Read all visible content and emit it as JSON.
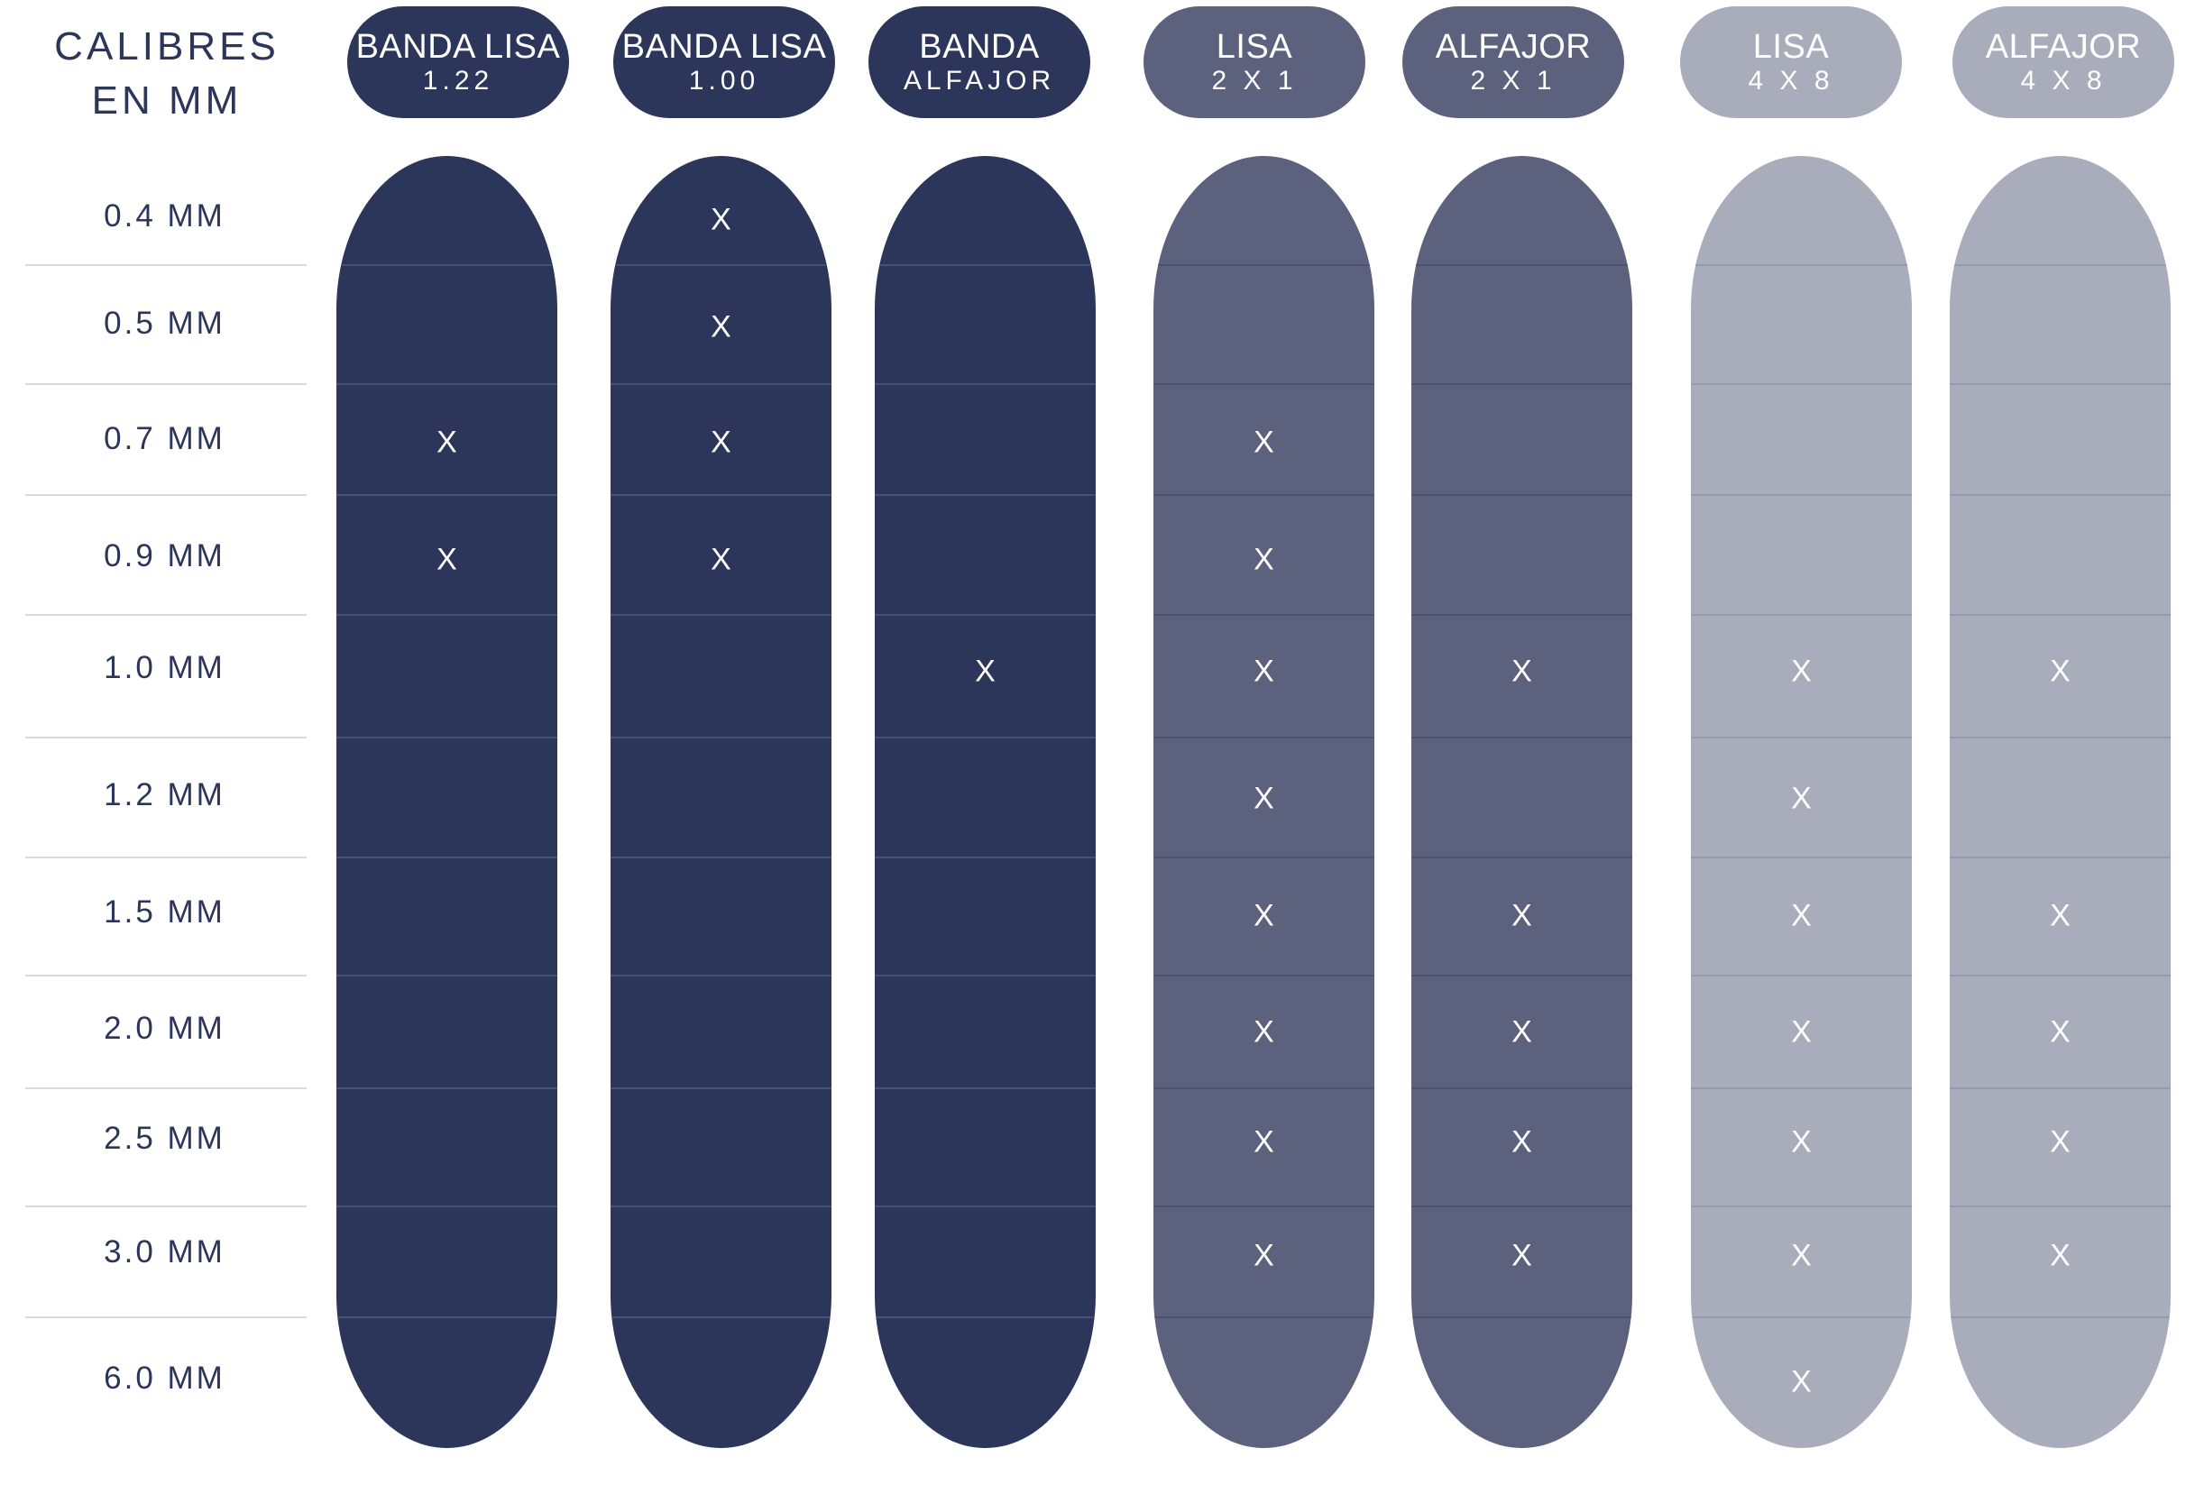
{
  "corner_title": [
    "CALIBRES",
    "EN MM"
  ],
  "colors": {
    "dark": "#2c355a",
    "mid": "#5c627e",
    "light": "#a9acbb"
  },
  "gauges": [
    "0.4 MM",
    "0.5 MM",
    "0.7 MM",
    "0.9 MM",
    "1.0 MM",
    "1.2 MM",
    "1.5 MM",
    "2.0 MM",
    "2.5 MM",
    "3.0 MM",
    "6.0 MM"
  ],
  "mark_symbol": "X",
  "products": [
    {
      "line1": "BANDA LISA",
      "line2": "1.22",
      "tone": "dark",
      "available": [
        false,
        false,
        true,
        true,
        false,
        false,
        false,
        false,
        false,
        false,
        false
      ]
    },
    {
      "line1": "BANDA LISA",
      "line2": "1.00",
      "tone": "dark",
      "available": [
        true,
        true,
        true,
        true,
        false,
        false,
        false,
        false,
        false,
        false,
        false
      ]
    },
    {
      "line1": "BANDA",
      "line2": "ALFAJOR",
      "tone": "dark",
      "available": [
        false,
        false,
        false,
        false,
        true,
        false,
        false,
        false,
        false,
        false,
        false
      ]
    },
    {
      "line1": "LISA",
      "line2": "2 X 1",
      "tone": "mid",
      "available": [
        false,
        false,
        true,
        true,
        true,
        true,
        true,
        true,
        true,
        true,
        false
      ]
    },
    {
      "line1": "ALFAJOR",
      "line2": "2 X 1",
      "tone": "mid",
      "available": [
        false,
        false,
        false,
        false,
        true,
        false,
        true,
        true,
        true,
        true,
        false
      ]
    },
    {
      "line1": "LISA",
      "line2": "4 X 8",
      "tone": "light",
      "available": [
        false,
        false,
        false,
        false,
        true,
        true,
        true,
        true,
        true,
        true,
        true
      ]
    },
    {
      "line1": "ALFAJOR",
      "line2": "4 X 8",
      "tone": "light",
      "available": [
        false,
        false,
        false,
        false,
        true,
        false,
        true,
        true,
        true,
        true,
        false
      ]
    }
  ]
}
